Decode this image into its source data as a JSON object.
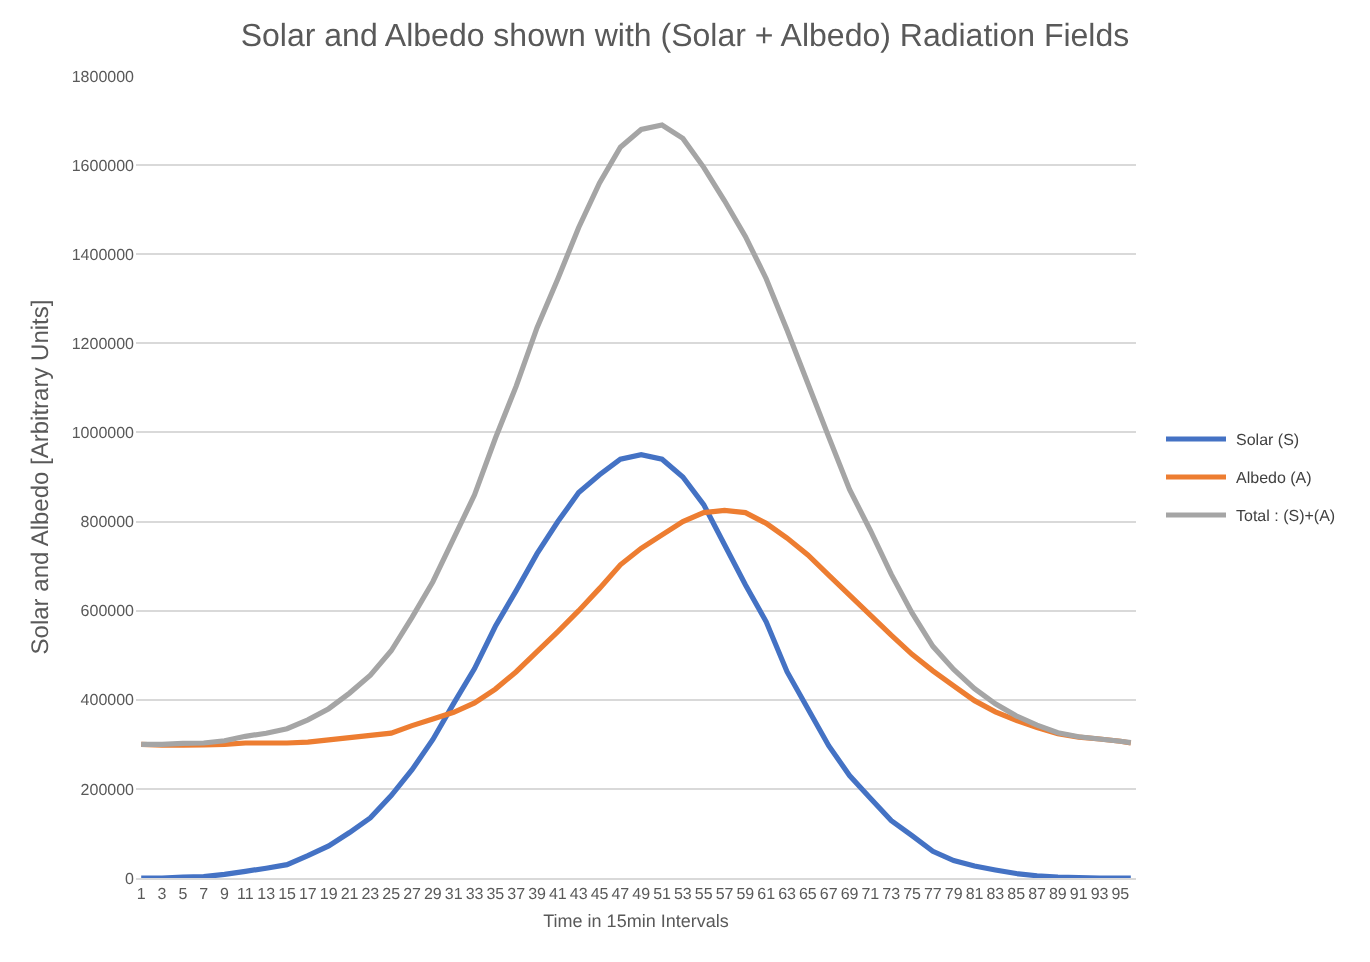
{
  "chart_data": {
    "type": "line",
    "title": "Solar and Albedo shown with (Solar + Albedo) Radiation Fields",
    "xlabel": "Time in 15min Intervals",
    "ylabel": "Solar and Albedo [Arbitrary Units]",
    "x": [
      1,
      3,
      5,
      7,
      9,
      11,
      13,
      15,
      17,
      19,
      21,
      23,
      25,
      27,
      29,
      31,
      33,
      35,
      37,
      39,
      41,
      43,
      45,
      47,
      49,
      51,
      53,
      55,
      57,
      59,
      61,
      63,
      65,
      67,
      69,
      71,
      73,
      75,
      77,
      79,
      81,
      83,
      85,
      87,
      89,
      91,
      93,
      95,
      96
    ],
    "series": [
      {
        "name": "Solar (S)",
        "color": "#4472c4",
        "values": [
          0,
          0,
          2000,
          3000,
          8000,
          15000,
          22000,
          30000,
          50000,
          72000,
          102000,
          135000,
          185000,
          243000,
          311000,
          392000,
          470000,
          565000,
          645000,
          728000,
          800000,
          865000,
          905000,
          940000,
          950000,
          940000,
          900000,
          838000,
          748000,
          658000,
          575000,
          463000,
          380000,
          297000,
          230000,
          179000,
          129000,
          95000,
          60000,
          39000,
          27000,
          18000,
          10000,
          5000,
          2000,
          1000,
          0,
          0,
          0
        ]
      },
      {
        "name": "Albedo (A)",
        "color": "#ed7d31",
        "values": [
          300000,
          298000,
          298000,
          299000,
          300000,
          303000,
          303000,
          303000,
          305000,
          310000,
          315000,
          320000,
          325000,
          342000,
          357000,
          372000,
          393000,
          424000,
          463000,
          508000,
          553000,
          600000,
          650000,
          703000,
          740000,
          770000,
          800000,
          820000,
          825000,
          820000,
          796000,
          763000,
          725000,
          680000,
          635000,
          590000,
          545000,
          502000,
          465000,
          431000,
          398000,
          373000,
          354000,
          338000,
          324000,
          316000,
          312000,
          307000,
          303000
        ]
      },
      {
        "name": "Total : (S)+(A)",
        "color": "#a5a5a5",
        "values": [
          300000,
          300000,
          302000,
          303000,
          308000,
          318000,
          325000,
          335000,
          355000,
          380000,
          415000,
          455000,
          510000,
          585000,
          665000,
          762000,
          860000,
          987000,
          1104000,
          1235000,
          1345000,
          1460000,
          1560000,
          1640000,
          1680000,
          1690000,
          1660000,
          1595000,
          1520000,
          1440000,
          1345000,
          1230000,
          1110000,
          990000,
          872000,
          780000,
          682000,
          595000,
          520000,
          468000,
          425000,
          391000,
          364000,
          343000,
          326000,
          317000,
          312000,
          307000,
          304000
        ]
      }
    ],
    "xlim": [
      0.5,
      96.5
    ],
    "xticks": [
      1,
      3,
      5,
      7,
      9,
      11,
      13,
      15,
      17,
      19,
      21,
      23,
      25,
      27,
      29,
      31,
      33,
      35,
      37,
      39,
      41,
      43,
      45,
      47,
      49,
      51,
      53,
      55,
      57,
      59,
      61,
      63,
      65,
      67,
      69,
      71,
      73,
      75,
      77,
      79,
      81,
      83,
      85,
      87,
      89,
      91,
      93,
      95
    ],
    "ylim": [
      0,
      1800000
    ],
    "yticks": [
      0,
      200000,
      400000,
      600000,
      800000,
      1000000,
      1200000,
      1400000,
      1600000,
      1800000
    ],
    "grid": "y",
    "legend": "right",
    "marker": "none",
    "line_style": "solid"
  }
}
